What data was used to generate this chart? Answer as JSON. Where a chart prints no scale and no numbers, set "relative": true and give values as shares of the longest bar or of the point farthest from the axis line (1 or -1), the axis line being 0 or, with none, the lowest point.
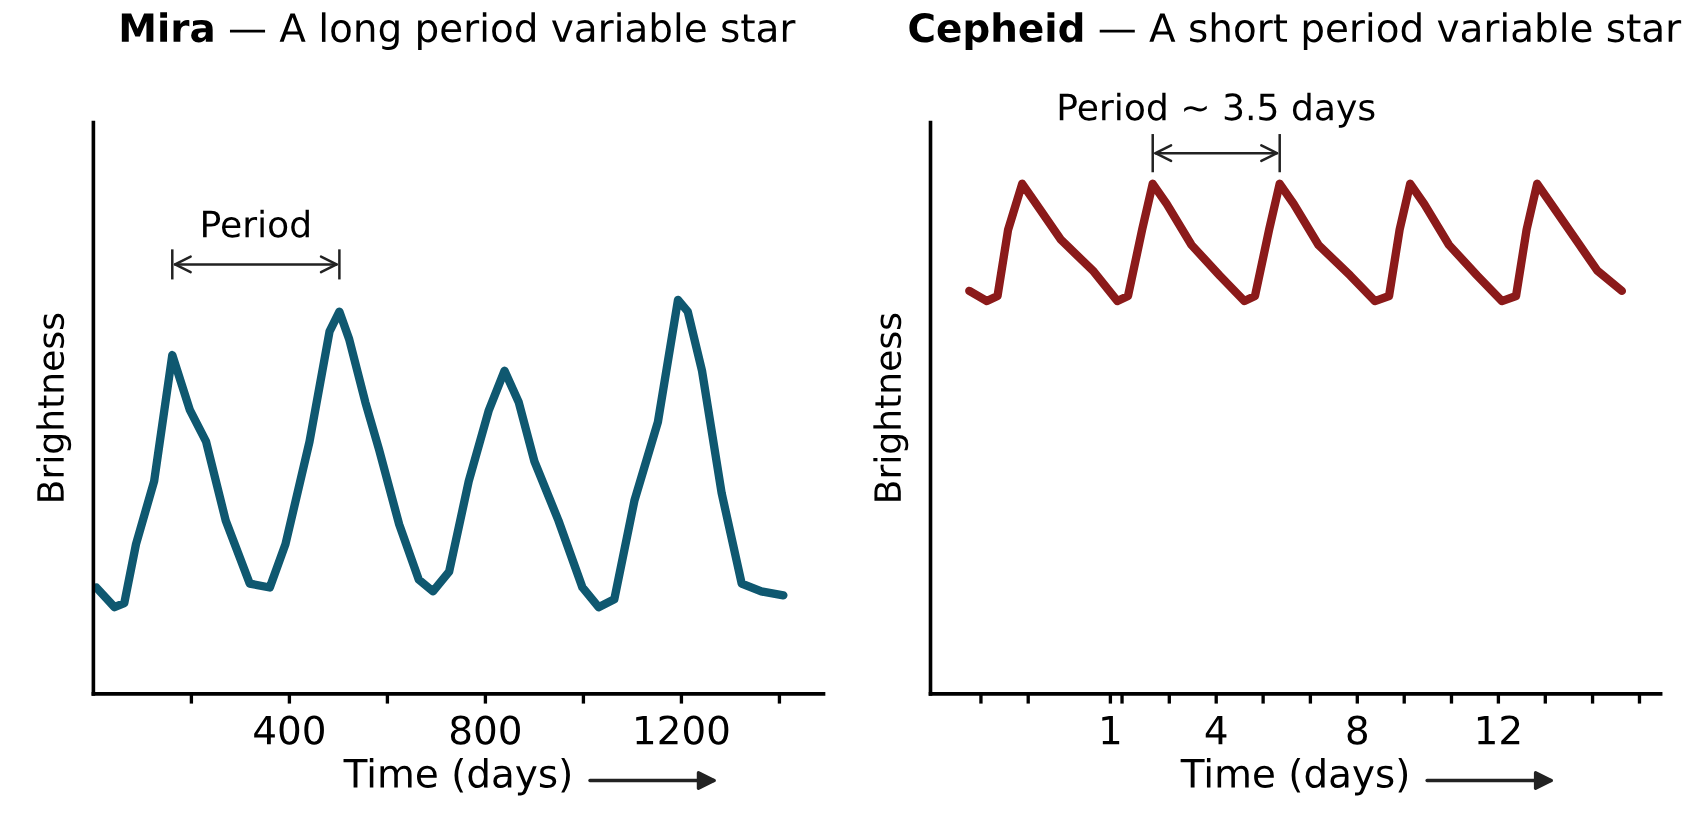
{
  "chart_data": [
    {
      "type": "line",
      "title": "Mira — A long period variable star",
      "xlabel": "Time (days)",
      "ylabel": "Brightness",
      "relative": true,
      "tick_labels": "x",
      "grid": false,
      "xlim": [
        0,
        1490
      ],
      "xticks": [
        {
          "value": 200,
          "label": null
        },
        400,
        {
          "value": 600,
          "label": null
        },
        800,
        {
          "value": 1000,
          "label": null
        },
        1200,
        {
          "value": 1400,
          "label": null
        }
      ],
      "annotations": [
        "Period"
      ],
      "series": [
        {
          "color": "#0f5870",
          "x": [
            6,
            43,
            63,
            87,
            124,
            161,
            197,
            230,
            270,
            319,
            360,
            392,
            441,
            482,
            502,
            522,
            555,
            583,
            624,
            664,
            693,
            726,
            766,
            807,
            839,
            868,
            900,
            949,
            998,
            1031,
            1063,
            1104,
            1152,
            1193,
            1213,
            1242,
            1282,
            1323,
            1363,
            1408
          ],
          "values": [
            0.27,
            0.22,
            0.23,
            0.38,
            0.54,
            0.86,
            0.72,
            0.64,
            0.44,
            0.28,
            0.27,
            0.38,
            0.64,
            0.92,
            0.97,
            0.9,
            0.74,
            0.62,
            0.43,
            0.29,
            0.26,
            0.31,
            0.54,
            0.72,
            0.82,
            0.74,
            0.59,
            0.44,
            0.27,
            0.22,
            0.24,
            0.49,
            0.69,
            1.0,
            0.97,
            0.82,
            0.51,
            0.28,
            0.26,
            0.25
          ]
        }
      ]
    },
    {
      "type": "line",
      "title": "Cepheid — A short period variable star",
      "xlabel": "Time (days)",
      "ylabel": "Brightness",
      "relative": true,
      "tick_labels": "x",
      "grid": false,
      "xlim": [
        -4.1,
        16.6
      ],
      "xticks": [
        {
          "value": -2.67,
          "label": null
        },
        {
          "value": -1.33,
          "label": null
        },
        1,
        {
          "value": 1.33,
          "label": null
        },
        {
          "value": 2.67,
          "label": null
        },
        4,
        {
          "value": 5.33,
          "label": null
        },
        {
          "value": 6.67,
          "label": null
        },
        8,
        {
          "value": 9.33,
          "label": null
        },
        {
          "value": 10.67,
          "label": null
        },
        12,
        {
          "value": 13.33,
          "label": null
        },
        {
          "value": 14.67,
          "label": null
        },
        {
          "value": 16,
          "label": null
        }
      ],
      "annotations": [
        "Period ~ 3.5 days"
      ],
      "series": [
        {
          "color": "#8b1a1a",
          "x": [
            -3.0,
            -2.5,
            -2.2,
            -1.9,
            -1.5,
            -1.1,
            -0.4,
            0.5,
            1.2,
            1.5,
            1.9,
            2.2,
            2.6,
            3.3,
            4.1,
            4.8,
            5.1,
            5.5,
            5.8,
            6.2,
            6.9,
            7.8,
            8.5,
            8.9,
            9.2,
            9.5,
            9.9,
            10.6,
            11.4,
            12.1,
            12.5,
            12.8,
            13.1,
            13.5,
            14.3,
            14.8,
            15.5
          ],
          "values": [
            0.79,
            0.77,
            0.78,
            0.91,
            1.0,
            0.96,
            0.89,
            0.83,
            0.77,
            0.78,
            0.91,
            1.0,
            0.96,
            0.88,
            0.82,
            0.77,
            0.78,
            0.91,
            1.0,
            0.96,
            0.88,
            0.82,
            0.77,
            0.78,
            0.91,
            1.0,
            0.96,
            0.88,
            0.82,
            0.77,
            0.78,
            0.91,
            1.0,
            0.96,
            0.88,
            0.83,
            0.79
          ]
        }
      ]
    }
  ]
}
